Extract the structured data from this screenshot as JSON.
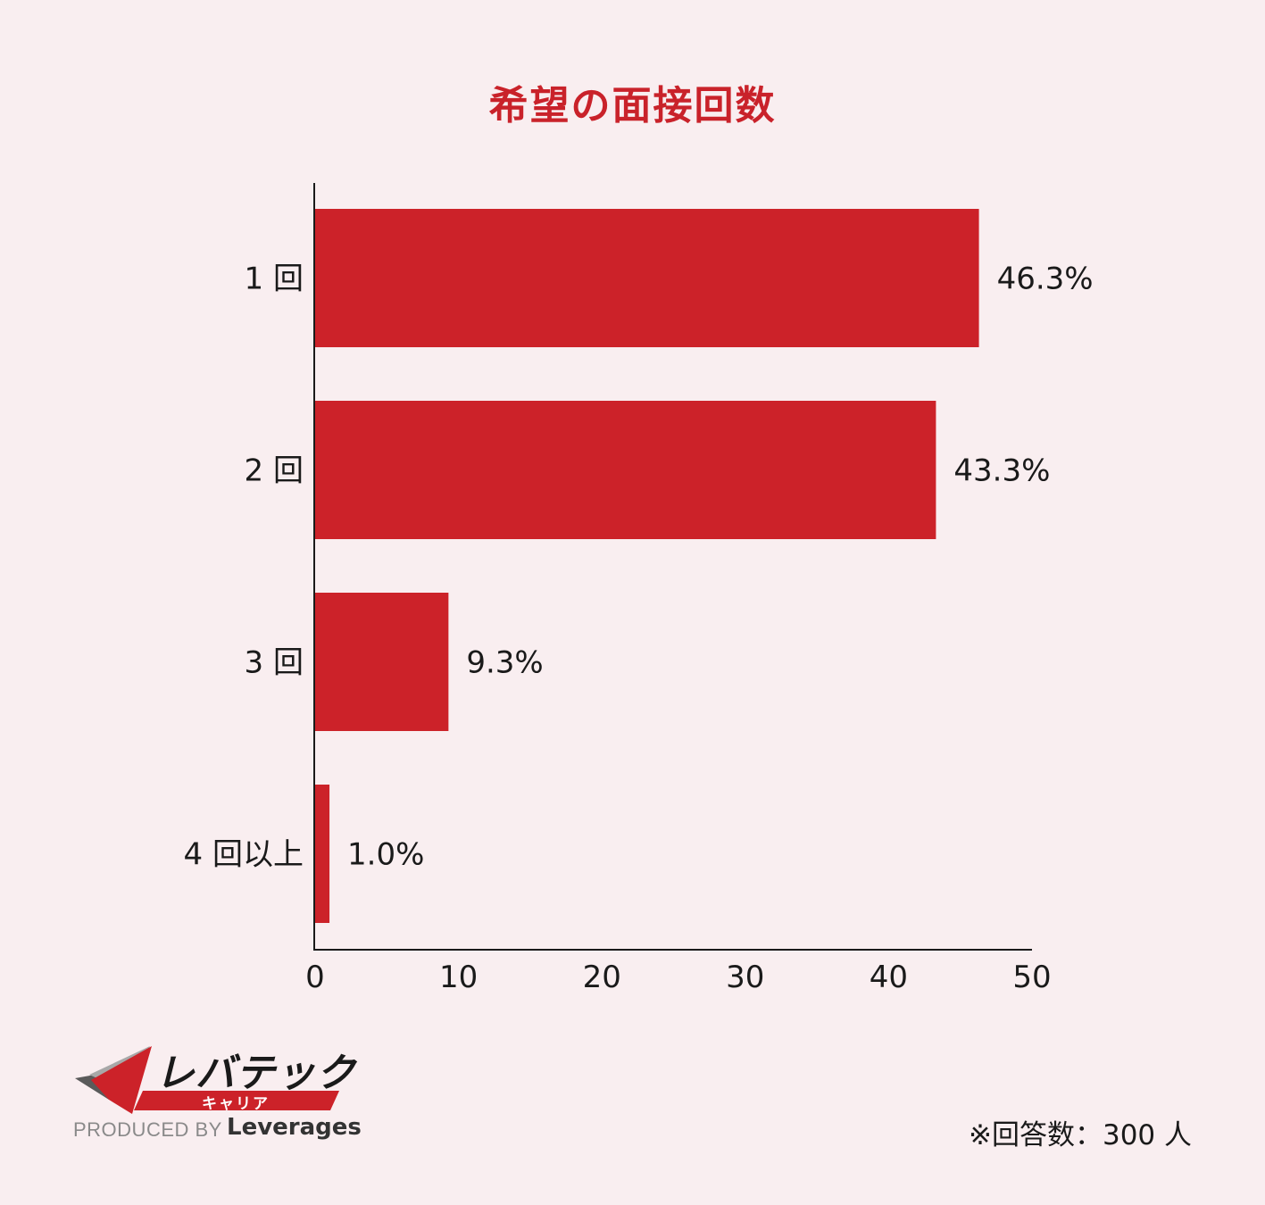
{
  "chart_data": {
    "type": "bar",
    "orientation": "horizontal",
    "title": "希望の面接回数",
    "categories": [
      "1 回",
      "2 回",
      "3 回",
      "4 回以上"
    ],
    "values": [
      46.3,
      43.3,
      9.3,
      1.0
    ],
    "value_labels": [
      "46.3%",
      "43.3%",
      "9.3%",
      "1.0%"
    ],
    "x_ticks": [
      "0",
      "10",
      "20",
      "30",
      "40",
      "50"
    ],
    "xlim": [
      0,
      50
    ],
    "grid": false,
    "bar_color": "#cc2229"
  },
  "logo": {
    "name": "レバテック",
    "sub": "キャリア",
    "produced_by": "PRODUCED BY",
    "brand": "Leverages",
    "colors": {
      "red": "#cc2229",
      "gray": "#5a5a5a",
      "light_gray": "#a8a8a8"
    }
  },
  "footnote": "※回答数：300 人"
}
